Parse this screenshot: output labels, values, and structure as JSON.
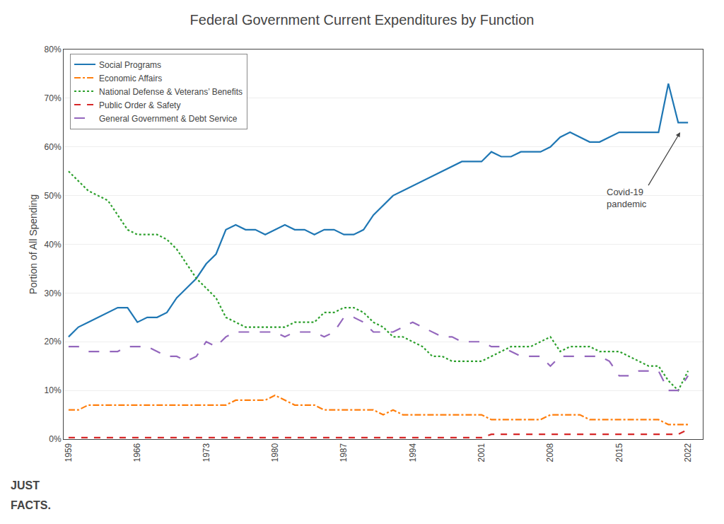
{
  "chart_data": {
    "type": "line",
    "title": "Federal Government Current Expenditures by Function",
    "y_label": "Portion of All Spending",
    "x": [
      1959,
      1960,
      1961,
      1962,
      1963,
      1964,
      1965,
      1966,
      1967,
      1968,
      1969,
      1970,
      1971,
      1972,
      1973,
      1974,
      1975,
      1976,
      1977,
      1978,
      1979,
      1980,
      1981,
      1982,
      1983,
      1984,
      1985,
      1986,
      1987,
      1988,
      1989,
      1990,
      1991,
      1992,
      1993,
      1994,
      1995,
      1996,
      1997,
      1998,
      1999,
      2000,
      2001,
      2002,
      2003,
      2004,
      2005,
      2006,
      2007,
      2008,
      2009,
      2010,
      2011,
      2012,
      2013,
      2014,
      2015,
      2016,
      2017,
      2018,
      2019,
      2020,
      2021,
      2022
    ],
    "series": [
      {
        "name": "Social Programs",
        "line_style": "solid",
        "values": [
          21,
          23,
          24,
          25,
          26,
          27,
          27,
          24,
          25,
          25,
          26,
          29,
          31,
          33,
          36,
          38,
          43,
          44,
          43,
          43,
          42,
          43,
          44,
          43,
          43,
          42,
          43,
          43,
          42,
          42,
          43,
          46,
          48,
          50,
          51,
          52,
          53,
          54,
          55,
          56,
          57,
          57,
          57,
          59,
          58,
          58,
          59,
          59,
          59,
          60,
          62,
          63,
          62,
          61,
          61,
          62,
          63,
          63,
          63,
          63,
          63,
          73,
          65,
          65
        ]
      },
      {
        "name": "Economic Affairs",
        "line_style": "dashdot",
        "values": [
          6,
          6,
          7,
          7,
          7,
          7,
          7,
          7,
          7,
          7,
          7,
          7,
          7,
          7,
          7,
          7,
          7,
          8,
          8,
          8,
          8,
          9,
          8,
          7,
          7,
          7,
          6,
          6,
          6,
          6,
          6,
          6,
          5,
          6,
          5,
          5,
          5,
          5,
          5,
          5,
          5,
          5,
          5,
          4,
          4,
          4,
          4,
          4,
          4,
          5,
          5,
          5,
          5,
          4,
          4,
          4,
          4,
          4,
          4,
          4,
          4,
          3,
          3,
          3
        ]
      },
      {
        "name": "National Defense & Veterans’ Benefits",
        "line_style": "dot",
        "values": [
          55,
          53,
          51,
          50,
          49,
          46,
          43,
          42,
          42,
          42,
          41,
          39,
          36,
          33,
          31,
          29,
          25,
          24,
          23,
          23,
          23,
          23,
          23,
          24,
          24,
          24,
          26,
          26,
          27,
          27,
          26,
          24,
          23,
          21,
          21,
          20,
          19,
          17,
          17,
          16,
          16,
          16,
          16,
          17,
          18,
          19,
          19,
          19,
          20,
          21,
          18,
          19,
          19,
          19,
          18,
          18,
          18,
          17,
          16,
          15,
          15,
          12,
          10,
          14
        ]
      },
      {
        "name": "Public Order & Safety",
        "line_style": "dash",
        "values": [
          0.3,
          0.3,
          0.3,
          0.3,
          0.3,
          0.3,
          0.3,
          0.3,
          0.3,
          0.3,
          0.3,
          0.3,
          0.3,
          0.3,
          0.3,
          0.3,
          0.3,
          0.3,
          0.3,
          0.3,
          0.3,
          0.3,
          0.3,
          0.3,
          0.3,
          0.3,
          0.3,
          0.3,
          0.3,
          0.3,
          0.3,
          0.3,
          0.3,
          0.3,
          0.3,
          0.3,
          0.3,
          0.3,
          0.3,
          0.3,
          0.3,
          0.3,
          0.3,
          1,
          1,
          1,
          1,
          1,
          1,
          1,
          1,
          1,
          1,
          1,
          1,
          1,
          1,
          1,
          1,
          1,
          1,
          1,
          1,
          2
        ]
      },
      {
        "name": "General Government & Debt Service",
        "line_style": "longdash",
        "values": [
          19,
          19,
          18,
          18,
          18,
          18,
          19,
          19,
          19,
          18,
          17,
          17,
          16,
          17,
          20,
          19,
          21,
          22,
          22,
          22,
          22,
          22,
          21,
          22,
          22,
          22,
          21,
          22,
          25,
          25,
          24,
          22,
          22,
          22,
          23,
          24,
          23,
          22,
          21,
          21,
          20,
          20,
          20,
          19,
          19,
          18,
          17,
          17,
          17,
          15,
          17,
          17,
          17,
          17,
          17,
          16,
          13,
          13,
          14,
          14,
          14,
          10,
          10,
          13
        ]
      }
    ],
    "xlim": [
      1958.5,
      2023.5
    ],
    "xticks": [
      1959,
      1966,
      1973,
      1980,
      1987,
      1994,
      2001,
      2008,
      2015,
      2022
    ],
    "ylim": [
      0,
      80
    ],
    "yticks": [
      {
        "value": 0,
        "label": "0%"
      },
      {
        "value": 10,
        "label": "10%"
      },
      {
        "value": 20,
        "label": "20%"
      },
      {
        "value": 30,
        "label": "30%"
      },
      {
        "value": 40,
        "label": "40%"
      },
      {
        "value": 50,
        "label": "50%"
      },
      {
        "value": 60,
        "label": "60%"
      },
      {
        "value": 70,
        "label": "70%"
      },
      {
        "value": 80,
        "label": "80%"
      }
    ],
    "grid": true,
    "legend": "upper left",
    "annotations": [
      {
        "text": "Covid-19\npandemic",
        "x": 2021.2,
        "y": 63
      },
      {
        "text": "JUST"
      },
      {
        "text": "FACTS."
      }
    ]
  }
}
